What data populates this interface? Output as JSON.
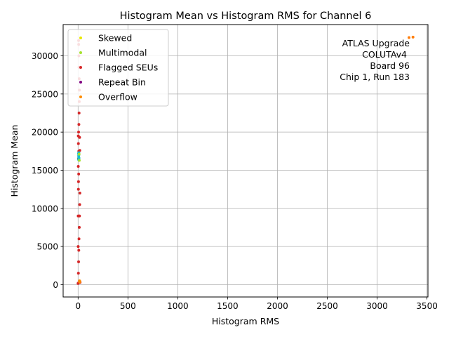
{
  "chart_data": {
    "type": "scatter",
    "title": "Histogram Mean vs Histogram RMS for Channel 6",
    "xlabel": "Histogram RMS",
    "ylabel": "Histogram Mean",
    "xlim": [
      -150,
      3510
    ],
    "ylim": [
      -1620,
      34100
    ],
    "xticks": [
      0,
      500,
      1000,
      1500,
      2000,
      2500,
      3000,
      3500
    ],
    "xtick_labels": [
      "0",
      "500",
      "1000",
      "1500",
      "2000",
      "2500",
      "3000",
      "3500"
    ],
    "yticks": [
      0,
      5000,
      10000,
      15000,
      20000,
      25000,
      30000
    ],
    "ytick_labels": [
      "0",
      "5000",
      "10000",
      "15000",
      "20000",
      "25000",
      "30000"
    ],
    "grid": true,
    "legend_position": "top-left",
    "annotation": [
      "ATLAS Upgrade",
      "COLUTAv4",
      "Board 96",
      "Chip 1, Run 183"
    ],
    "legend": [
      {
        "label": "Skewed",
        "color": "#e8e800"
      },
      {
        "label": "Multimodal",
        "color": "#a6e22e"
      },
      {
        "label": "Flagged SEUs",
        "color": "#d62728"
      },
      {
        "label": "Repeat Bin",
        "color": "#800080"
      },
      {
        "label": "Overflow",
        "color": "#ff8c00"
      }
    ],
    "series": [
      {
        "color": "#d62728",
        "points": [
          [
            2,
            200
          ],
          [
            3,
            1500
          ],
          [
            5,
            3000
          ],
          [
            7,
            4500
          ],
          [
            9,
            6000
          ],
          [
            12,
            7500
          ],
          [
            14,
            9000
          ],
          [
            16,
            10500
          ],
          [
            18,
            12000
          ],
          [
            3,
            12500
          ],
          [
            4,
            13500
          ],
          [
            6,
            14500
          ],
          [
            2,
            15500
          ],
          [
            4,
            16500
          ],
          [
            7,
            17500
          ],
          [
            3,
            18500
          ],
          [
            2,
            19500
          ],
          [
            5,
            20000
          ],
          [
            8,
            21000
          ],
          [
            10,
            22500
          ],
          [
            12,
            24000
          ],
          [
            14,
            25500
          ],
          [
            11,
            27000
          ],
          [
            9,
            28500
          ],
          [
            8,
            30000
          ],
          [
            6,
            31500
          ],
          [
            5,
            32000
          ],
          [
            15,
            19300
          ],
          [
            17,
            17600
          ],
          [
            20,
            300
          ],
          [
            18,
            400
          ],
          [
            0,
            150
          ],
          [
            1,
            5000
          ],
          [
            1,
            9000
          ]
        ]
      },
      {
        "color": "#ff7f0e",
        "points": [
          [
            3320,
            32400
          ],
          [
            3360,
            32450
          ]
        ]
      },
      {
        "color": "#ff8c00",
        "points": [
          [
            14,
            500
          ],
          [
            16,
            350
          ]
        ]
      },
      {
        "color": "#17becf",
        "points": [
          [
            5,
            16400
          ],
          [
            6,
            16700
          ],
          [
            7,
            17000
          ],
          [
            8,
            17300
          ],
          [
            6,
            16900
          ],
          [
            9,
            16600
          ],
          [
            4,
            17200
          ]
        ]
      },
      {
        "color": "#a6e22e",
        "points": [
          [
            10,
            17100
          ],
          [
            12,
            16300
          ]
        ]
      }
    ]
  }
}
